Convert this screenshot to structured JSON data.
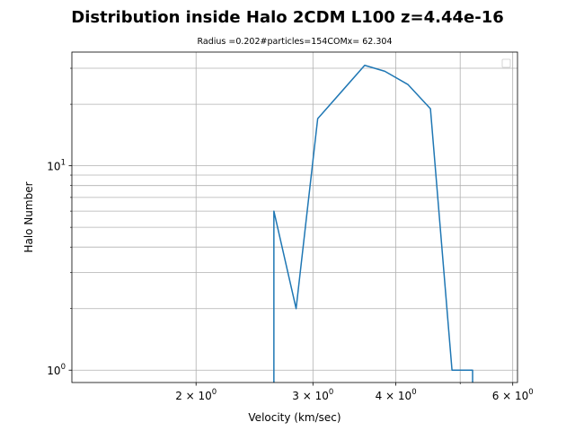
{
  "chart_data": {
    "type": "line",
    "title": "Distribution inside Halo 2CDM L100 z=4.44e-16",
    "subtitle": "Radius =0.202#particles=154COMx= 62.304",
    "xlabel": "Velocity (km/sec)",
    "ylabel": "Halo Number",
    "xscale": "log",
    "yscale": "log",
    "xlim": [
      1.3,
      6.1
    ],
    "ylim": [
      0.87,
      36
    ],
    "grid": true,
    "grid_which": "both",
    "legend": "upper right (empty)",
    "line_color": "#1f77b4",
    "x_major_ticks": [
      {
        "base": "2",
        "exp": "0",
        "value": 2
      },
      {
        "base": "3",
        "exp": "0",
        "value": 3
      },
      {
        "base": "4",
        "exp": "0",
        "value": 4
      },
      {
        "base": "6",
        "exp": "0",
        "value": 6
      }
    ],
    "x_minor_ticks": [
      5
    ],
    "y_major_ticks": [
      {
        "base": "10",
        "exp": "0",
        "value": 1
      },
      {
        "base": "10",
        "exp": "1",
        "value": 10
      }
    ],
    "y_minor_ticks": [
      2,
      3,
      4,
      5,
      6,
      7,
      8,
      9,
      20,
      30
    ],
    "x": [
      2.62,
      2.62,
      2.83,
      3.05,
      3.59,
      3.85,
      4.17,
      4.51,
      4.86,
      5.22,
      5.22
    ],
    "y": [
      0.5,
      6,
      2,
      17,
      31,
      29,
      25,
      19,
      1,
      1,
      0.5
    ]
  }
}
